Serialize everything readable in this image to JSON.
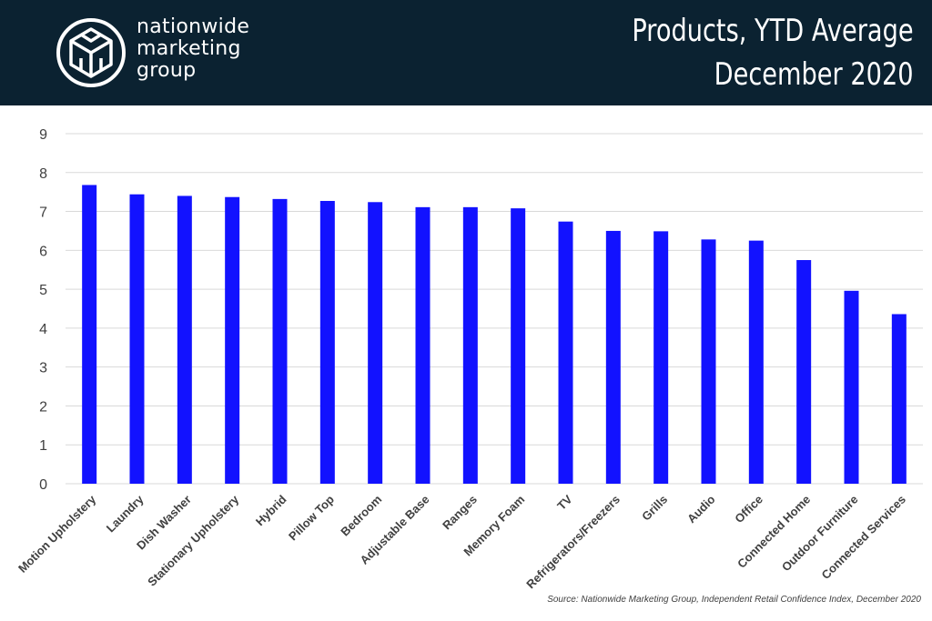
{
  "header": {
    "brand_lines": [
      "nationwide",
      "marketing",
      "group"
    ],
    "title_lines": [
      "Products, YTD Average",
      "December 2020"
    ],
    "background_color": "#0b2231"
  },
  "chart_data": {
    "type": "bar",
    "title": "Products, YTD Average December 2020",
    "categories": [
      "Motion Upholstery",
      "Laundry",
      "Dish Washer",
      "Stationary Upholstery",
      "Hybrid",
      "Pillow Top",
      "Bedroom",
      "Adjustable Base",
      "Ranges",
      "Memory Foam",
      "TV",
      "Refrigerators/Freezers",
      "Grills",
      "Audio",
      "Office",
      "Connected Home",
      "Outdoor Furniture",
      "Connected Services"
    ],
    "values": [
      7.68,
      7.44,
      7.4,
      7.37,
      7.32,
      7.27,
      7.24,
      7.11,
      7.11,
      7.08,
      6.74,
      6.5,
      6.49,
      6.28,
      6.25,
      5.75,
      4.96,
      4.36
    ],
    "ylim": [
      0,
      9
    ],
    "yticks": [
      0,
      1,
      2,
      3,
      4,
      5,
      6,
      7,
      8,
      9
    ],
    "grid": true,
    "bar_color": "#1212ff"
  },
  "source": "Source: Nationwide Marketing Group, Independent Retail Confidence Index, December 2020"
}
